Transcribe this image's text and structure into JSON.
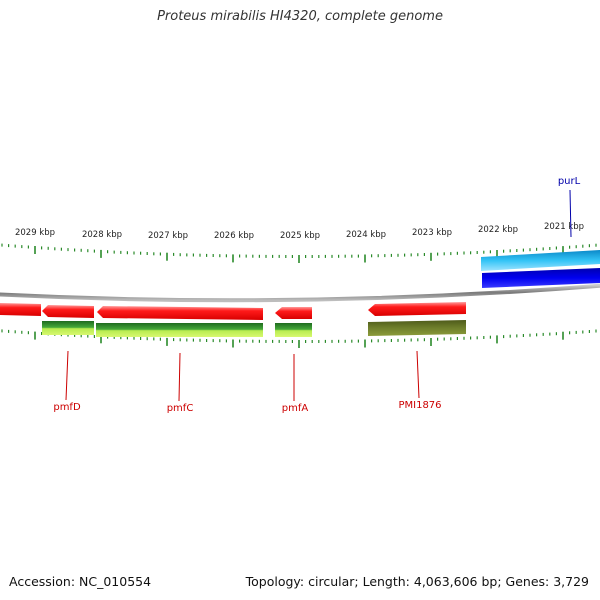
{
  "title": "Proteus mirabilis HI4320, complete genome",
  "footer": {
    "accession": "Accession: NC_010554",
    "summary": "Topology: circular; Length: 4,063,606 bp; Genes: 3,729"
  },
  "colors": {
    "backbone": "#8c8c8c",
    "tick": "#2a8a2a",
    "label": "#222222",
    "gene_red": "#ee1111",
    "gene_cds_green": "#3aa02a",
    "gene_cds_light": "#c8f058",
    "gene_olive": "#6b7a2a",
    "gene_cyan": "#22b8f0",
    "gene_blue": "#0000e0",
    "gene_label_red": "#cc0000",
    "gene_label_blue": "#0000aa"
  },
  "scale_labels": [
    "2029 kbp",
    "2028 kbp",
    "2027 kbp",
    "2026 kbp",
    "2025 kbp",
    "2024 kbp",
    "2023 kbp",
    "2022 kbp",
    "2021 kbp"
  ],
  "gene_labels": [
    {
      "id": "pmfD",
      "text": "pmfD",
      "strand": "minus"
    },
    {
      "id": "pmfC",
      "text": "pmfC",
      "strand": "minus"
    },
    {
      "id": "pmfA",
      "text": "pmfA",
      "strand": "minus"
    },
    {
      "id": "PMI1876",
      "text": "PMI1876",
      "strand": "minus"
    },
    {
      "id": "purL",
      "text": "purL",
      "strand": "plus"
    }
  ]
}
